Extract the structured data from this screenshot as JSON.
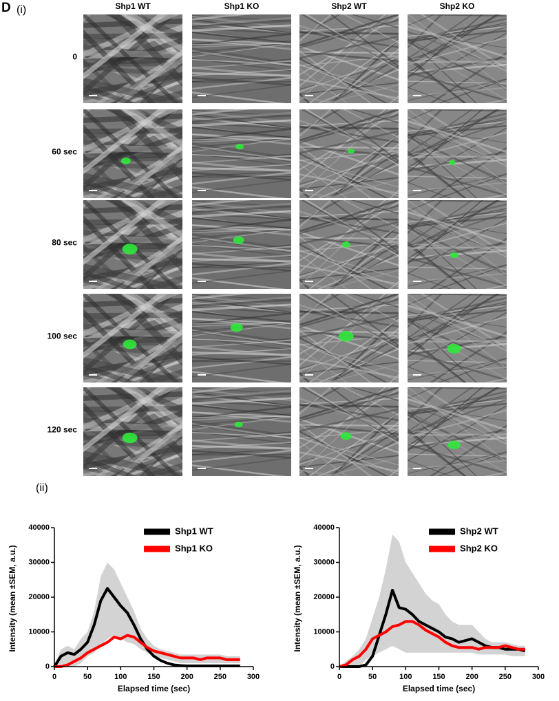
{
  "panel": {
    "letter": "D",
    "part_i": "(i)",
    "part_ii": "(ii)",
    "columns": [
      "Shp1 WT",
      "Shp1 KO",
      "Shp2 WT",
      "Shp2 KO"
    ],
    "rows": [
      "0",
      "60 sec",
      "80 sec",
      "100 sec",
      "120 sec"
    ]
  },
  "chart_data": [
    {
      "type": "line",
      "xlabel": "Elapsed time (sec)",
      "ylabel": "Intensity (mean ±SEM, a.u.)",
      "x": [
        0,
        10,
        20,
        30,
        40,
        50,
        60,
        70,
        80,
        90,
        100,
        110,
        120,
        130,
        140,
        150,
        160,
        170,
        180,
        190,
        200,
        210,
        220,
        230,
        240,
        250,
        260,
        270,
        280
      ],
      "xlim": [
        0,
        300
      ],
      "xticks": [
        0,
        50,
        100,
        150,
        200,
        250,
        300
      ],
      "ylim": [
        0,
        40000
      ],
      "yticks": [
        0,
        10000,
        20000,
        30000,
        40000
      ],
      "legend": "upper right",
      "band_color": "#d3d3d3",
      "band_high": [
        500,
        5000,
        6000,
        5000,
        8000,
        10000,
        16000,
        26000,
        30000,
        28000,
        24000,
        20000,
        16000,
        11000,
        8000,
        6000,
        5000,
        4500,
        4000,
        3500,
        3500,
        3500,
        3500,
        3500,
        3500,
        3500,
        3000,
        3000,
        3000
      ],
      "band_low": [
        0,
        0,
        0,
        0,
        1000,
        3000,
        4000,
        6000,
        8000,
        9000,
        8000,
        7000,
        6500,
        5000,
        4000,
        3000,
        2500,
        2000,
        1500,
        1000,
        1000,
        1000,
        1000,
        1000,
        1000,
        1000,
        1000,
        1000,
        1000
      ],
      "series": [
        {
          "name": "Shp1 WT",
          "color": "#000000",
          "values": [
            0,
            3000,
            4000,
            3500,
            5000,
            7000,
            12000,
            19000,
            22500,
            20000,
            17500,
            15500,
            12000,
            8000,
            5000,
            3000,
            1800,
            1000,
            500,
            300,
            200,
            200,
            200,
            200,
            200,
            200,
            200,
            200,
            200
          ]
        },
        {
          "name": "Shp1 KO",
          "color": "#ff0000",
          "values": [
            0,
            0,
            500,
            1500,
            2500,
            4000,
            5000,
            6000,
            7000,
            8500,
            8000,
            9000,
            8500,
            7000,
            5500,
            4500,
            4000,
            3500,
            3000,
            2500,
            2500,
            2500,
            2000,
            2500,
            2500,
            2500,
            2000,
            2000,
            2000
          ]
        }
      ]
    },
    {
      "type": "line",
      "xlabel": "Elapsed time (sec)",
      "ylabel": "Intensity (mean ±SEM, a.u.)",
      "x": [
        0,
        10,
        20,
        30,
        40,
        50,
        60,
        70,
        80,
        90,
        100,
        110,
        120,
        130,
        140,
        150,
        160,
        170,
        180,
        190,
        200,
        210,
        220,
        230,
        240,
        250,
        260,
        270,
        280
      ],
      "xlim": [
        0,
        300
      ],
      "xticks": [
        0,
        50,
        100,
        150,
        200,
        250,
        300
      ],
      "ylim": [
        0,
        40000
      ],
      "yticks": [
        0,
        10000,
        20000,
        30000,
        40000
      ],
      "legend": "upper right",
      "band_color": "#d3d3d3",
      "band_high": [
        200,
        1500,
        3000,
        5000,
        8000,
        14000,
        20000,
        28000,
        38000,
        36000,
        30000,
        27000,
        24000,
        21000,
        19000,
        18000,
        15000,
        13000,
        12000,
        12000,
        12000,
        10000,
        8000,
        7000,
        7000,
        7000,
        6500,
        6000,
        6000
      ],
      "band_low": [
        0,
        0,
        0,
        0,
        2000,
        3000,
        4000,
        5000,
        6000,
        5000,
        4000,
        4000,
        4000,
        4000,
        4000,
        4000,
        4000,
        4000,
        4000,
        4000,
        4000,
        3500,
        3500,
        3500,
        3500,
        3500,
        3000,
        3000,
        3000
      ],
      "series": [
        {
          "name": "Shp2 WT",
          "color": "#000000",
          "values": [
            0,
            0,
            0,
            0,
            500,
            3000,
            9000,
            15000,
            22000,
            17000,
            16500,
            15000,
            13000,
            12000,
            11000,
            10000,
            8500,
            8000,
            7000,
            7500,
            8000,
            7000,
            6000,
            5500,
            5500,
            5000,
            5000,
            5000,
            4500
          ]
        },
        {
          "name": "Shp2 KO",
          "color": "#ff0000",
          "values": [
            0,
            500,
            2000,
            3000,
            5000,
            8000,
            9000,
            10000,
            11500,
            12000,
            13000,
            13000,
            12000,
            10500,
            9500,
            8500,
            7000,
            6000,
            5500,
            5500,
            5500,
            5000,
            5500,
            5500,
            5500,
            6000,
            5500,
            5000,
            5000
          ]
        }
      ]
    }
  ]
}
